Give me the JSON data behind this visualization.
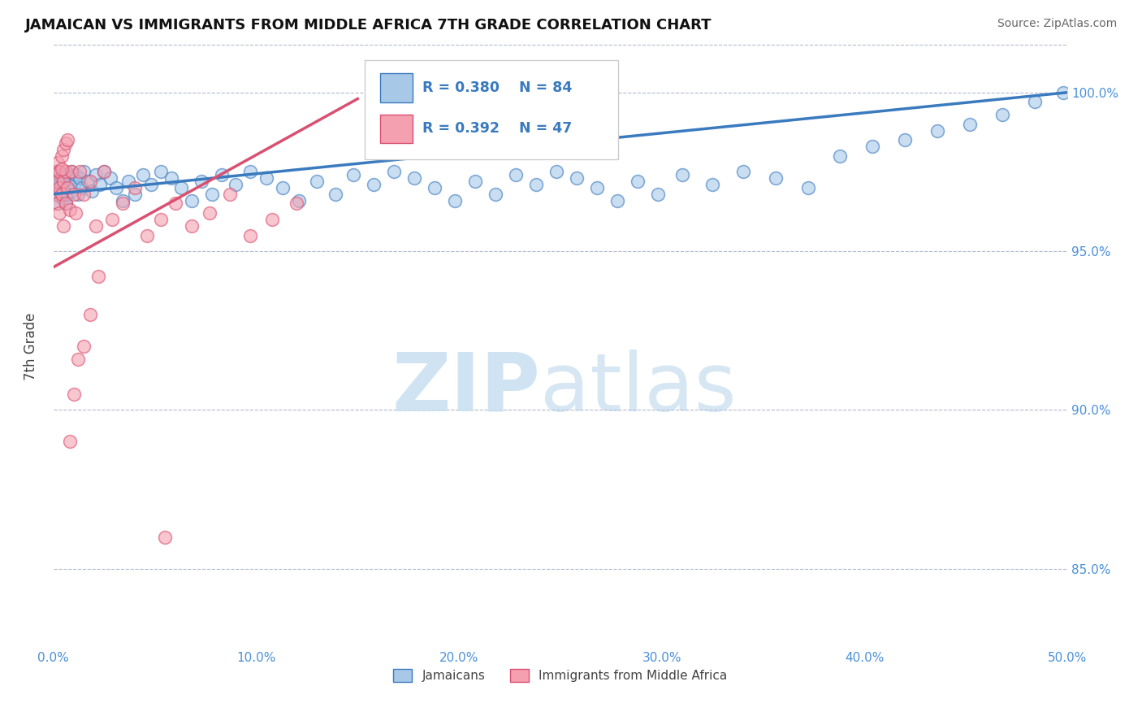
{
  "title": "JAMAICAN VS IMMIGRANTS FROM MIDDLE AFRICA 7TH GRADE CORRELATION CHART",
  "source": "Source: ZipAtlas.com",
  "ylabel": "7th Grade",
  "xlim": [
    0.0,
    0.5
  ],
  "ylim": [
    0.825,
    1.015
  ],
  "yticks": [
    0.85,
    0.9,
    0.95,
    1.0
  ],
  "xticks": [
    0.0,
    0.1,
    0.2,
    0.3,
    0.4,
    0.5
  ],
  "blue_R": 0.38,
  "blue_N": 84,
  "pink_R": 0.392,
  "pink_N": 47,
  "blue_color": "#a8c8e8",
  "pink_color": "#f4a0b0",
  "trend_blue": "#3a7abf",
  "trend_pink": "#d95070",
  "legend_blue": "Jamaicans",
  "legend_pink": "Immigrants from Middle Africa",
  "blue_scatter": [
    [
      0.001,
      0.972
    ],
    [
      0.001,
      0.968
    ],
    [
      0.002,
      0.975
    ],
    [
      0.002,
      0.97
    ],
    [
      0.002,
      0.965
    ],
    [
      0.003,
      0.972
    ],
    [
      0.003,
      0.969
    ],
    [
      0.003,
      0.975
    ],
    [
      0.003,
      0.971
    ],
    [
      0.004,
      0.968
    ],
    [
      0.004,
      0.973
    ],
    [
      0.004,
      0.967
    ],
    [
      0.005,
      0.974
    ],
    [
      0.005,
      0.969
    ],
    [
      0.005,
      0.972
    ],
    [
      0.006,
      0.965
    ],
    [
      0.006,
      0.97
    ],
    [
      0.007,
      0.968
    ],
    [
      0.007,
      0.974
    ],
    [
      0.008,
      0.971
    ],
    [
      0.008,
      0.973
    ],
    [
      0.009,
      0.969
    ],
    [
      0.009,
      0.975
    ],
    [
      0.01,
      0.971
    ],
    [
      0.011,
      0.974
    ],
    [
      0.012,
      0.968
    ],
    [
      0.013,
      0.973
    ],
    [
      0.014,
      0.97
    ],
    [
      0.015,
      0.975
    ],
    [
      0.017,
      0.972
    ],
    [
      0.019,
      0.969
    ],
    [
      0.021,
      0.974
    ],
    [
      0.023,
      0.971
    ],
    [
      0.025,
      0.975
    ],
    [
      0.028,
      0.973
    ],
    [
      0.031,
      0.97
    ],
    [
      0.034,
      0.966
    ],
    [
      0.037,
      0.972
    ],
    [
      0.04,
      0.968
    ],
    [
      0.044,
      0.974
    ],
    [
      0.048,
      0.971
    ],
    [
      0.053,
      0.975
    ],
    [
      0.058,
      0.973
    ],
    [
      0.063,
      0.97
    ],
    [
      0.068,
      0.966
    ],
    [
      0.073,
      0.972
    ],
    [
      0.078,
      0.968
    ],
    [
      0.083,
      0.974
    ],
    [
      0.09,
      0.971
    ],
    [
      0.097,
      0.975
    ],
    [
      0.105,
      0.973
    ],
    [
      0.113,
      0.97
    ],
    [
      0.121,
      0.966
    ],
    [
      0.13,
      0.972
    ],
    [
      0.139,
      0.968
    ],
    [
      0.148,
      0.974
    ],
    [
      0.158,
      0.971
    ],
    [
      0.168,
      0.975
    ],
    [
      0.178,
      0.973
    ],
    [
      0.188,
      0.97
    ],
    [
      0.198,
      0.966
    ],
    [
      0.208,
      0.972
    ],
    [
      0.218,
      0.968
    ],
    [
      0.228,
      0.974
    ],
    [
      0.238,
      0.971
    ],
    [
      0.248,
      0.975
    ],
    [
      0.258,
      0.973
    ],
    [
      0.268,
      0.97
    ],
    [
      0.278,
      0.966
    ],
    [
      0.288,
      0.972
    ],
    [
      0.298,
      0.968
    ],
    [
      0.31,
      0.974
    ],
    [
      0.325,
      0.971
    ],
    [
      0.34,
      0.975
    ],
    [
      0.356,
      0.973
    ],
    [
      0.372,
      0.97
    ],
    [
      0.388,
      0.98
    ],
    [
      0.404,
      0.983
    ],
    [
      0.42,
      0.985
    ],
    [
      0.436,
      0.988
    ],
    [
      0.452,
      0.99
    ],
    [
      0.468,
      0.993
    ],
    [
      0.484,
      0.997
    ],
    [
      0.498,
      1.0
    ]
  ],
  "pink_scatter": [
    [
      0.001,
      0.975
    ],
    [
      0.001,
      0.968
    ],
    [
      0.002,
      0.972
    ],
    [
      0.002,
      0.965
    ],
    [
      0.002,
      0.978
    ],
    [
      0.003,
      0.97
    ],
    [
      0.003,
      0.962
    ],
    [
      0.003,
      0.975
    ],
    [
      0.004,
      0.968
    ],
    [
      0.004,
      0.98
    ],
    [
      0.005,
      0.972
    ],
    [
      0.005,
      0.958
    ],
    [
      0.006,
      0.975
    ],
    [
      0.006,
      0.965
    ],
    [
      0.007,
      0.97
    ],
    [
      0.008,
      0.963
    ],
    [
      0.009,
      0.975
    ],
    [
      0.01,
      0.968
    ],
    [
      0.011,
      0.962
    ],
    [
      0.013,
      0.975
    ],
    [
      0.015,
      0.968
    ],
    [
      0.018,
      0.972
    ],
    [
      0.021,
      0.958
    ],
    [
      0.025,
      0.975
    ],
    [
      0.029,
      0.96
    ],
    [
      0.034,
      0.965
    ],
    [
      0.04,
      0.97
    ],
    [
      0.046,
      0.955
    ],
    [
      0.053,
      0.96
    ],
    [
      0.06,
      0.965
    ],
    [
      0.068,
      0.958
    ],
    [
      0.077,
      0.962
    ],
    [
      0.087,
      0.968
    ],
    [
      0.097,
      0.955
    ],
    [
      0.108,
      0.96
    ],
    [
      0.12,
      0.965
    ],
    [
      0.008,
      0.89
    ],
    [
      0.01,
      0.905
    ],
    [
      0.012,
      0.916
    ],
    [
      0.015,
      0.92
    ],
    [
      0.018,
      0.93
    ],
    [
      0.022,
      0.942
    ],
    [
      0.055,
      0.86
    ],
    [
      0.004,
      0.976
    ],
    [
      0.005,
      0.982
    ],
    [
      0.006,
      0.984
    ],
    [
      0.007,
      0.985
    ]
  ]
}
